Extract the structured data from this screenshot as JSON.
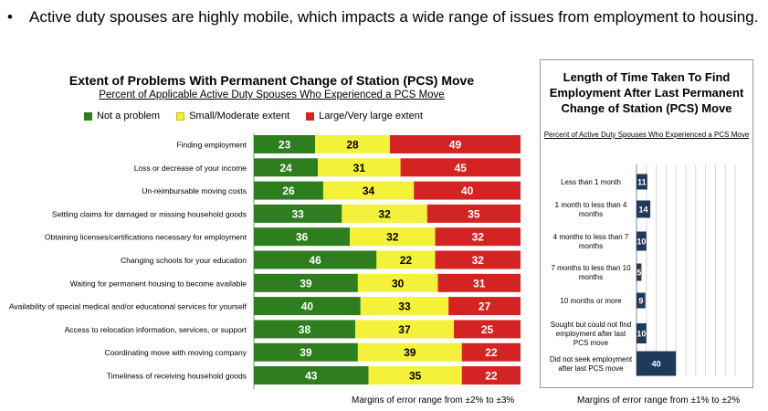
{
  "bullet": {
    "marker": "•",
    "text": "Active duty spouses are highly mobile, which impacts a wide range of issues from employment to housing."
  },
  "colors": {
    "green": "#2e7d1f",
    "yellow": "#f3f13a",
    "red": "#d42323",
    "navy": "#1f3a5a"
  },
  "chart1": {
    "title": "Extent of Problems With Permanent Change of Station (PCS) Move",
    "subtitle": "Percent of Applicable Active Duty Spouses Who Experienced a PCS Move",
    "margin_note": "Margins of error range from ±2% to ±3%"
  },
  "chart2": {
    "title": "Length of Time Taken To Find Employment After Last Permanent Change of Station (PCS) Move",
    "subtitle": "Percent of Active Duty Spouses Who Experienced a PCS Move",
    "margin_note": "Margins of error range from ±1% to ±2%"
  },
  "chart_data": [
    {
      "type": "bar",
      "orientation": "horizontal-stacked",
      "title": "Extent of Problems With Permanent Change of Station (PCS) Move",
      "subtitle": "Percent of Applicable Active Duty Spouses Who Experienced a PCS Move",
      "legend_position": "top",
      "categories": [
        "Finding employment",
        "Loss or decrease of your income",
        "Un-reimbursable moving costs",
        "Settling claims for damaged or missing household goods",
        "Obtaining licenses/certifications necessary for employment",
        "Changing schools for your education",
        "Waiting for permanent housing to become available",
        "Availability of special medical and/or educational services for yourself",
        "Access to relocation information, services, or support",
        "Coordinating move with moving company",
        "Timeliness of receiving household goods"
      ],
      "series": [
        {
          "name": "Not a problem",
          "color": "#2e7d1f",
          "values": [
            23,
            24,
            26,
            33,
            36,
            46,
            39,
            40,
            38,
            39,
            43
          ]
        },
        {
          "name": "Small/Moderate extent",
          "color": "#f3f13a",
          "values": [
            28,
            31,
            34,
            32,
            32,
            22,
            30,
            33,
            37,
            39,
            35
          ]
        },
        {
          "name": "Large/Very large extent",
          "color": "#d42323",
          "values": [
            49,
            45,
            40,
            35,
            32,
            32,
            31,
            27,
            25,
            22,
            22
          ]
        }
      ]
    },
    {
      "type": "bar",
      "orientation": "horizontal",
      "title": "Length of Time Taken To Find Employment After Last Permanent Change of Station (PCS) Move",
      "subtitle": "Percent of Active Duty Spouses Who Experienced a PCS Move",
      "grid": true,
      "xlim": [
        0,
        100
      ],
      "categories": [
        "Less than 1 month",
        "1 month to less than 4 months",
        "4 months to less than 7 months",
        "7 months to less than 10 months",
        "10 months or more",
        "Sought but could not find employment after last PCS move",
        "Did not seek employment after last PCS move"
      ],
      "values": [
        11,
        14,
        10,
        5,
        9,
        10,
        40
      ],
      "color": "#1f3a5a"
    }
  ]
}
